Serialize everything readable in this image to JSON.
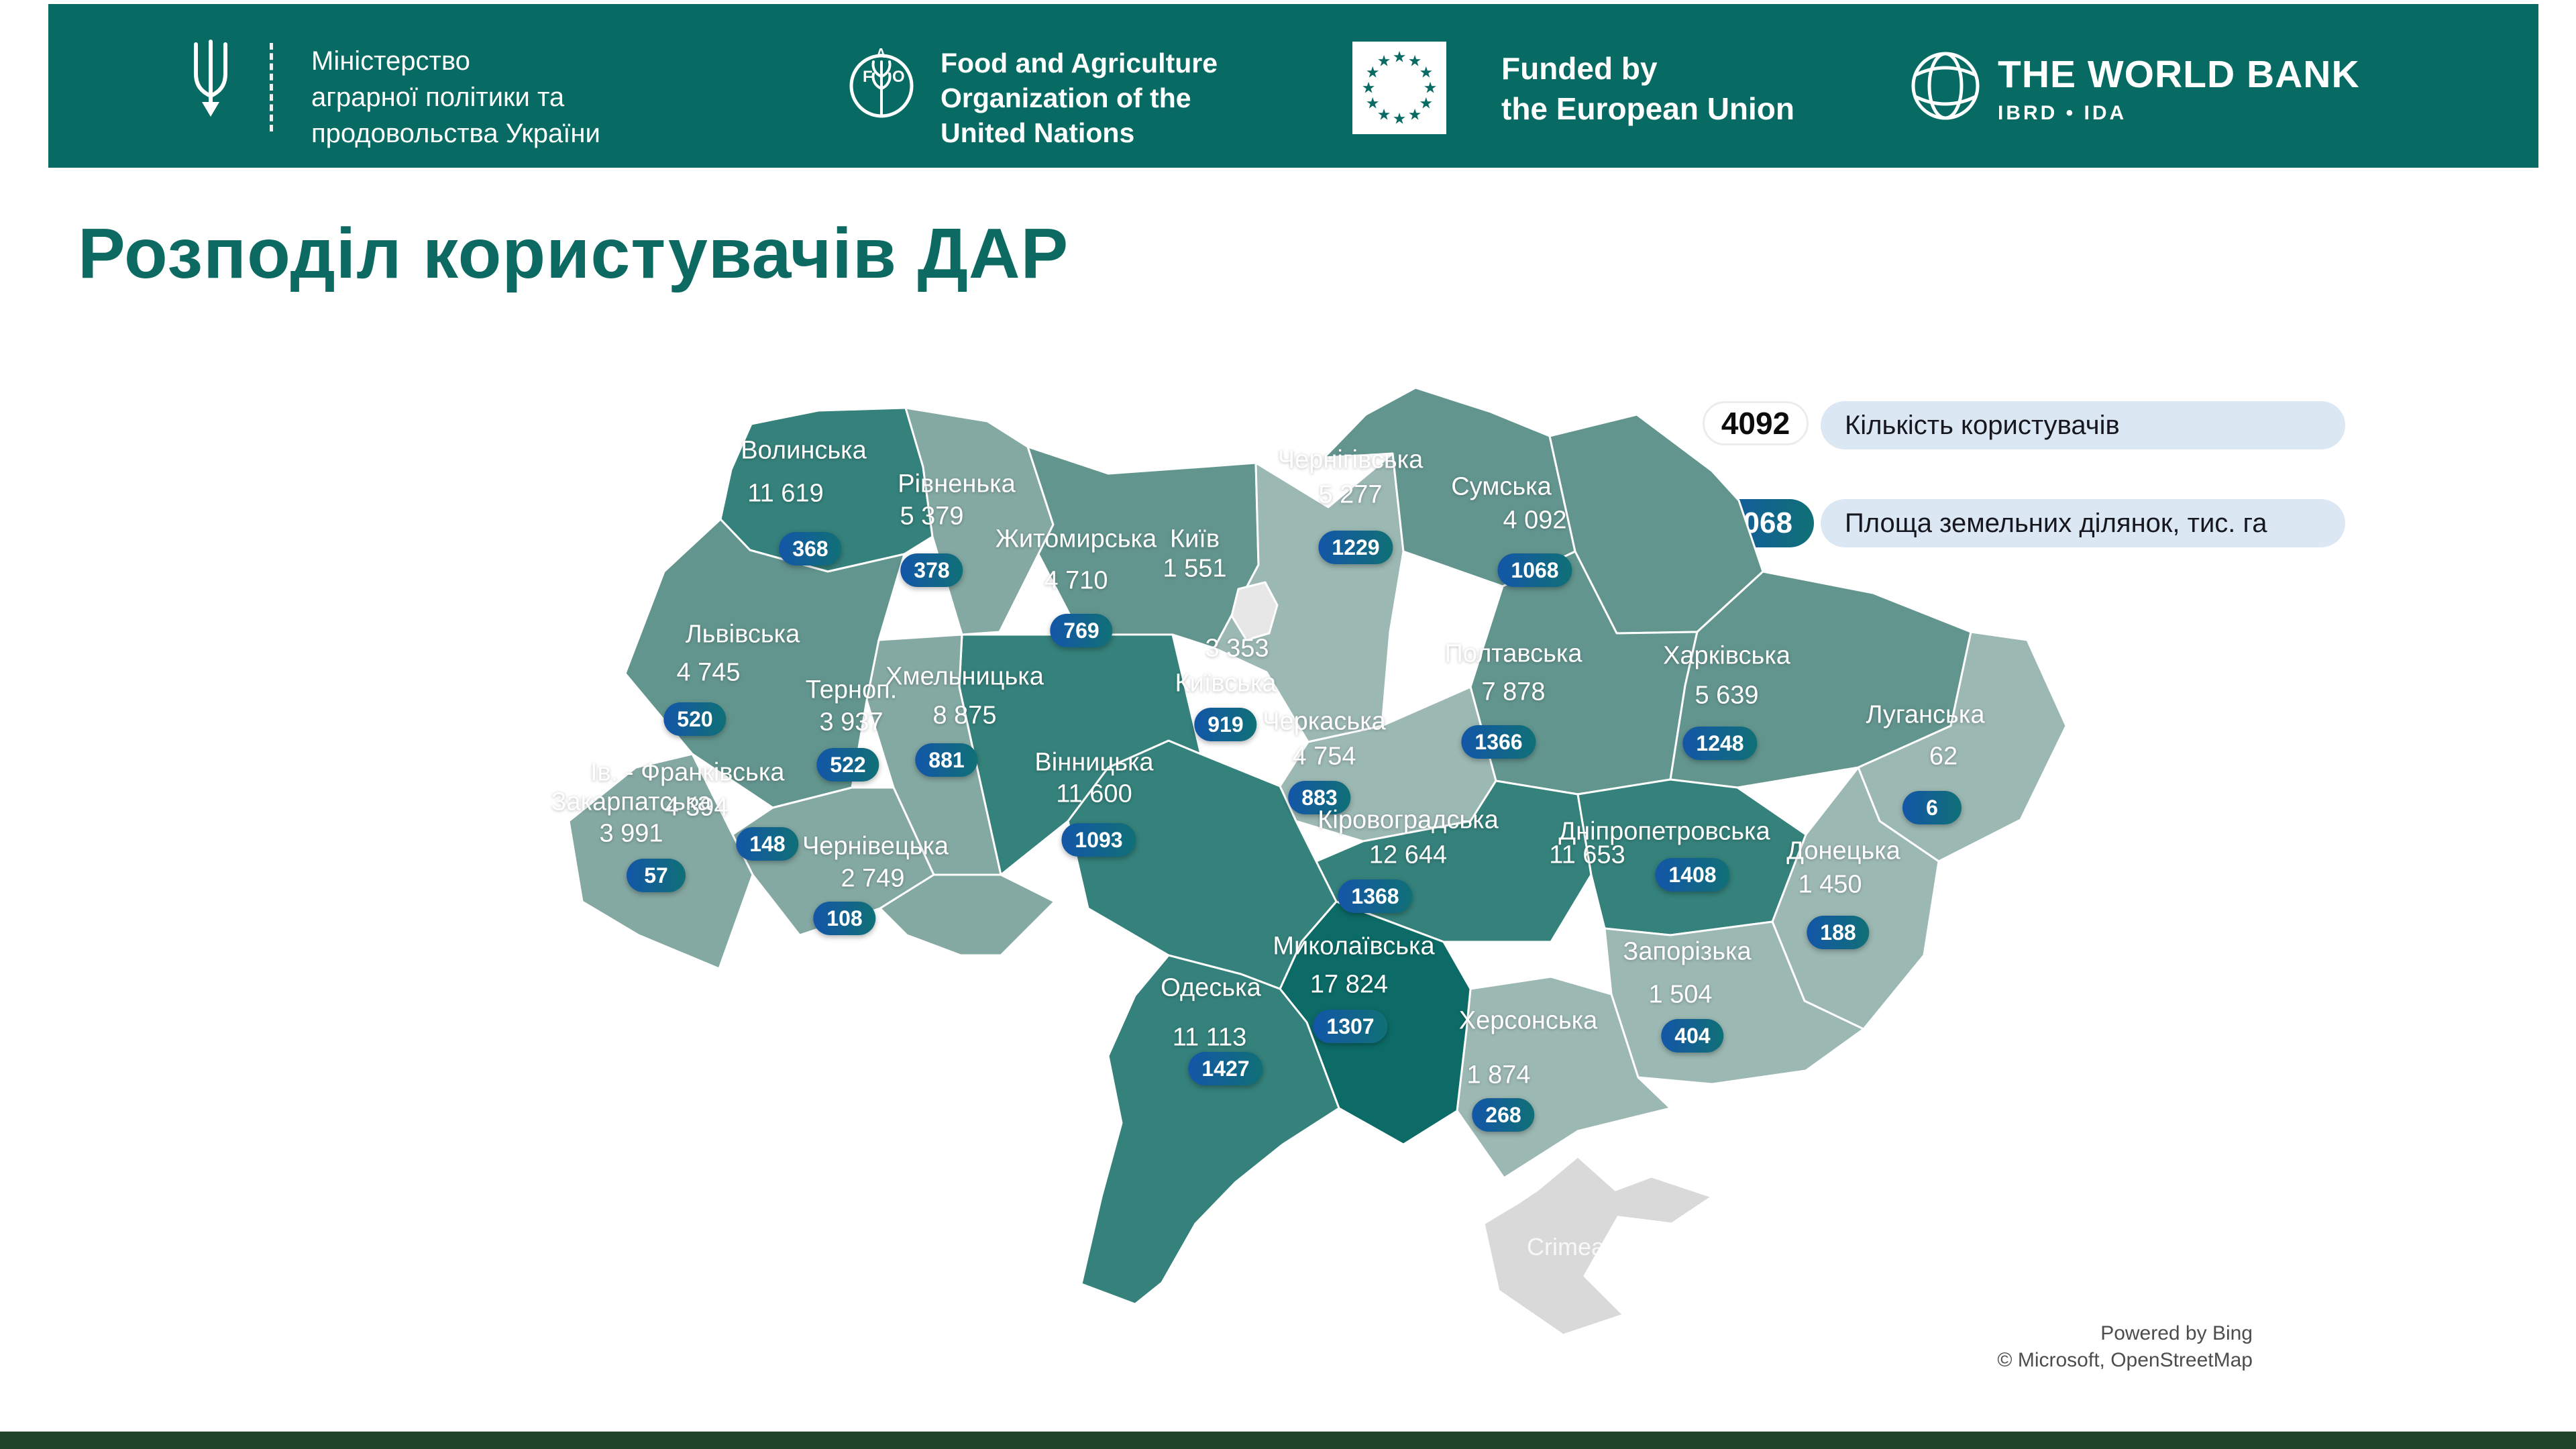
{
  "title": "Розподіл користувачів ДАР",
  "header": {
    "ministry": {
      "line1": "Міністерство",
      "line2": "аграрної політики та",
      "line3": "продовольства України"
    },
    "fao": {
      "line1": "Food and Agriculture",
      "line2": "Organization of the",
      "line3": "United Nations"
    },
    "eu": {
      "line1": "Funded by",
      "line2": "the European Union"
    },
    "worldbank": {
      "title": "THE WORLD BANK",
      "subtitle": "IBRD • IDA"
    }
  },
  "legend": {
    "users_value": "4092",
    "users_label": "Кількість користувачів",
    "area_value": "1068",
    "area_label": "Площа земельних ділянок, тис. га"
  },
  "attribution": {
    "line1": "Powered by Bing",
    "line2": "© Microsoft, OpenStreetMap"
  },
  "crimea": {
    "label": "Crimea"
  },
  "icons": {
    "eu_star": "★",
    "trident": "ukraine-trident",
    "fao_logo": "fao-wheat-circle",
    "worldbank_globe": "globe-meridians"
  },
  "colors": {
    "header": "#076a63",
    "title": "#0d6a62",
    "footer": "#1f4428",
    "badge_gradient_left": "#1356a8",
    "badge_gradient_right": "#107076",
    "legend_label_bg": "#dbe8f4",
    "s1": "#9cb8b3",
    "s2": "#84a8a2",
    "s3": "#63958f",
    "s4": "#35817b",
    "s5": "#0c6b66",
    "city": "#e7e7e7",
    "crimea": "#d9d9d9"
  },
  "regions": [
    {
      "id": "volynska",
      "name": "Волинська",
      "users": "11 619",
      "area": "368",
      "shade": "s4"
    },
    {
      "id": "rivnenska",
      "name": "Рівненька",
      "users": "5 379",
      "area": "378",
      "shade": "s2"
    },
    {
      "id": "zhytomyrska",
      "name": "Житомирська",
      "users": "4 710",
      "area": "769",
      "shade": "s3"
    },
    {
      "id": "kyiv_city",
      "name": "Київ",
      "users": "1 551",
      "area": null,
      "shade": "city"
    },
    {
      "id": "kyivska",
      "name": "Київська",
      "users": "3 353",
      "area": "919",
      "shade": "s1"
    },
    {
      "id": "chernihivska",
      "name": "Чернігівська",
      "users": "5 277",
      "area": "1229",
      "shade": "s3"
    },
    {
      "id": "sumska",
      "name": "Сумська",
      "users": "4 092",
      "area": "1068",
      "shade": "s3"
    },
    {
      "id": "lvivska",
      "name": "Львівська",
      "users": "4 745",
      "area": "520",
      "shade": "s3"
    },
    {
      "id": "ternopilska",
      "name": "Терноп.",
      "users": "3 937",
      "area": "522",
      "shade": "s2"
    },
    {
      "id": "khmelnytska",
      "name": "Хмельницька",
      "users": "8 875",
      "area": "881",
      "shade": "s4"
    },
    {
      "id": "cherkaska",
      "name": "Черкаська",
      "users": "4 754",
      "area": "883",
      "shade": "s1"
    },
    {
      "id": "poltavska",
      "name": "Полтавська",
      "users": "7 878",
      "area": "1366",
      "shade": "s3"
    },
    {
      "id": "kharkivska",
      "name": "Харківська",
      "users": "5 639",
      "area": "1248",
      "shade": "s3"
    },
    {
      "id": "luhanska",
      "name": "Луганська",
      "users": "62",
      "area": "6",
      "shade": "s1"
    },
    {
      "id": "ivanofrankivska",
      "name": "Ів. - Франківська",
      "users": "4 394",
      "area": "148",
      "shade": "s2"
    },
    {
      "id": "zakarpatska",
      "name": "Закарпатська",
      "users": "3 991",
      "area": "57",
      "shade": "s2"
    },
    {
      "id": "chernivetska",
      "name": "Чернівецька",
      "users": "2 749",
      "area": "108",
      "shade": "s2"
    },
    {
      "id": "vinnytska",
      "name": "Вінницька",
      "users": "11 600",
      "area": "1093",
      "shade": "s4"
    },
    {
      "id": "kirovohradska",
      "name": "Кіровоградська",
      "users": "12 644",
      "area": "1368",
      "shade": "s4"
    },
    {
      "id": "dnipropetrovska",
      "name": "Дніпропетровська",
      "users": "11 653",
      "area": "1408",
      "shade": "s4"
    },
    {
      "id": "donetska",
      "name": "Донецька",
      "users": "1 450",
      "area": "188",
      "shade": "s1"
    },
    {
      "id": "zaporizka",
      "name": "Запорізька",
      "users": "1 504",
      "area": "404",
      "shade": "s1"
    },
    {
      "id": "mykolaivska",
      "name": "Миколаївська",
      "users": "17 824",
      "area": "1307",
      "shade": "s5"
    },
    {
      "id": "odeska",
      "name": "Одеська",
      "users": "11 113",
      "area": "1427",
      "shade": "s4"
    },
    {
      "id": "khersonska",
      "name": "Херсонська",
      "users": "1 874",
      "area": "268",
      "shade": "s1"
    }
  ]
}
